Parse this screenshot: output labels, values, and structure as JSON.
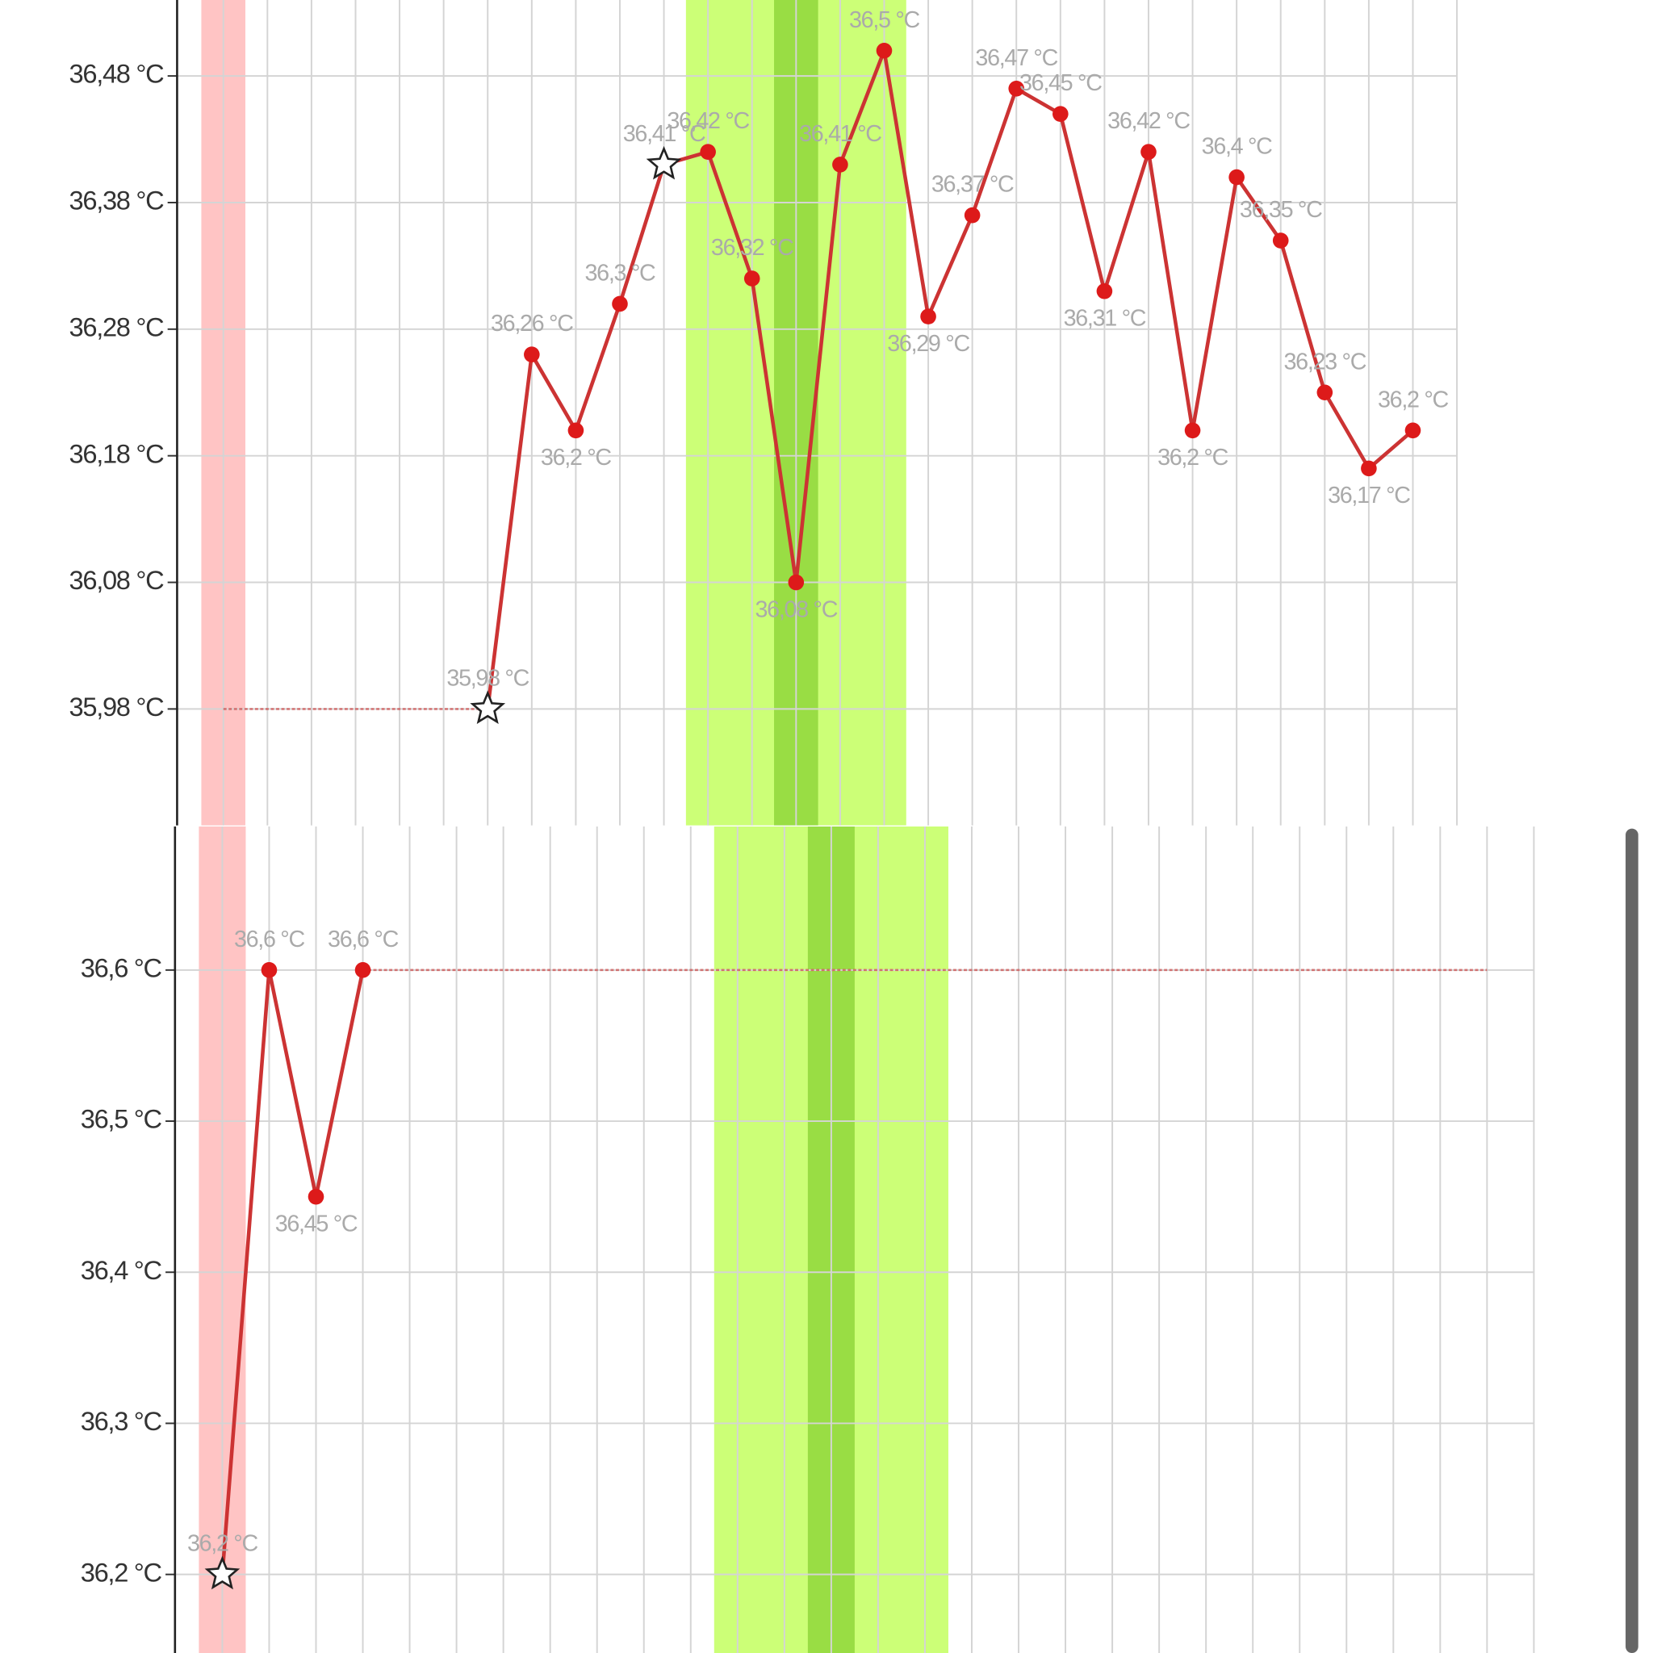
{
  "chart_data": [
    {
      "type": "line",
      "x": [
        0,
        1,
        2,
        3,
        4,
        5,
        6,
        7,
        8,
        9,
        10,
        11,
        12,
        13,
        14,
        15,
        16,
        17,
        18,
        19,
        20,
        21,
        22,
        23,
        24,
        25,
        26,
        27
      ],
      "xlim": [
        -1.05,
        28
      ],
      "ylim": [
        35.888,
        36.54
      ],
      "yticks": [
        {
          "value": 35.98,
          "label": "35,98 °C"
        },
        {
          "value": 36.08,
          "label": "36,08 °C"
        },
        {
          "value": 36.18,
          "label": "36,18 °C"
        },
        {
          "value": 36.28,
          "label": "36,28 °C"
        },
        {
          "value": 36.38,
          "label": "36,38 °C"
        },
        {
          "value": 36.48,
          "label": "36,48 °C"
        }
      ],
      "grid": true,
      "bands": [
        {
          "from": -0.5,
          "to": 0.5,
          "color": "#ffc4c4"
        },
        {
          "from": 10.5,
          "to": 15.5,
          "color": "#ccff77"
        },
        {
          "from": 12.5,
          "to": 13.5,
          "color": "#99dd44"
        }
      ],
      "star_markers": [
        6,
        10
      ],
      "series": [
        {
          "color": "#cc3333",
          "values": [
            null,
            null,
            null,
            null,
            null,
            null,
            35.98,
            36.26,
            36.2,
            36.3,
            36.41,
            36.42,
            36.32,
            36.08,
            36.41,
            36.5,
            36.29,
            36.37,
            36.47,
            36.45,
            36.31,
            36.42,
            36.2,
            36.4,
            36.35,
            36.23,
            36.17,
            36.2
          ],
          "value_labels": [
            null,
            null,
            null,
            null,
            null,
            null,
            "35,98 °C",
            "36,26 °C",
            "36,2 °C",
            "36,3 °C",
            "36,41 °C",
            "36,42 °C",
            "36,32 °C",
            "36,08 °C",
            "36,41 °C",
            "36,5 °C",
            "36,29 °C",
            "36,37 °C",
            "36,47 °C",
            "36,45 °C",
            "36,31 °C",
            "36,42 °C",
            "36,2 °C",
            "36,4 °C",
            "36,35 °C",
            "36,23 °C",
            "36,17 °C",
            "36,2 °C"
          ]
        }
      ]
    },
    {
      "type": "line",
      "x": [
        0,
        1,
        2,
        3,
        4,
        5,
        6,
        7,
        8,
        9,
        10,
        11,
        12,
        13,
        14,
        15,
        16,
        17,
        18,
        19,
        20,
        21,
        22,
        23,
        24,
        25,
        26,
        27
      ],
      "xlim": [
        -1.01,
        28
      ],
      "ylim": [
        36.148,
        36.695
      ],
      "yticks": [
        {
          "value": 36.2,
          "label": "36,2 °C"
        },
        {
          "value": 36.3,
          "label": "36,3 °C"
        },
        {
          "value": 36.4,
          "label": "36,4 °C"
        },
        {
          "value": 36.5,
          "label": "36,5 °C"
        },
        {
          "value": 36.6,
          "label": "36,6 °C"
        }
      ],
      "grid": true,
      "bands": [
        {
          "from": -0.5,
          "to": 0.5,
          "color": "#ffc4c4"
        },
        {
          "from": 10.5,
          "to": 15.5,
          "color": "#ccff77"
        },
        {
          "from": 12.5,
          "to": 13.5,
          "color": "#99dd44"
        }
      ],
      "star_markers": [
        0
      ],
      "series": [
        {
          "color": "#cc3333",
          "values": [
            36.2,
            36.6,
            36.45,
            36.6,
            null,
            null,
            null,
            null,
            null,
            null,
            null,
            null,
            null,
            null,
            null,
            null,
            null,
            null,
            null,
            null,
            null,
            null,
            null,
            null,
            null,
            null,
            null,
            null
          ],
          "value_labels": [
            "36,2 °C",
            "36,6 °C",
            "36,45 °C",
            "36,6 °C",
            null,
            null,
            null,
            null,
            null,
            null,
            null,
            null,
            null,
            null,
            null,
            null,
            null,
            null,
            null,
            null,
            null,
            null,
            null,
            null,
            null,
            null,
            null,
            null
          ]
        }
      ]
    }
  ]
}
